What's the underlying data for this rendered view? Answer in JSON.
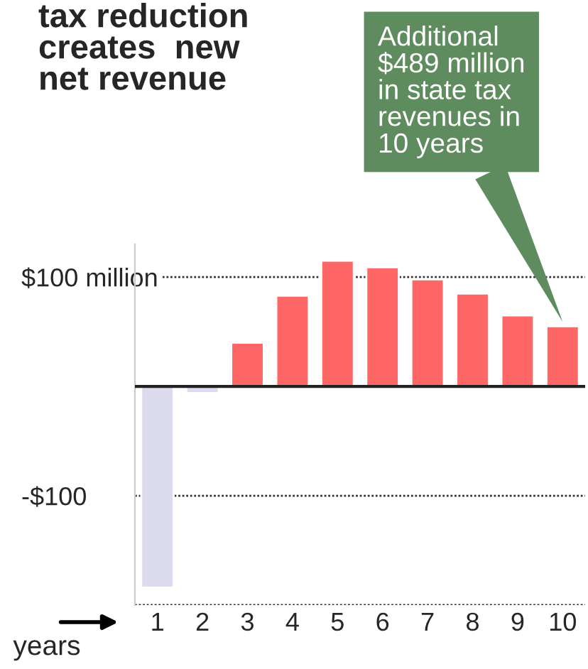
{
  "chart_data": {
    "type": "bar",
    "title": "tax reduction\ncreates  new\nnet revenue",
    "xlabel": "years",
    "categories": [
      "1",
      "2",
      "3",
      "4",
      "5",
      "6",
      "7",
      "8",
      "9",
      "10"
    ],
    "values": [
      -184,
      -6,
      40,
      83,
      115,
      109,
      98,
      85,
      65,
      55
    ],
    "colors": [
      "#dcdaee",
      "#dcdaee",
      "#ff6666",
      "#ff6666",
      "#ff6666",
      "#ff6666",
      "#ff6666",
      "#ff6666",
      "#ff6666",
      "#ff6666"
    ],
    "ylim": [
      -200,
      130
    ],
    "yticks": [
      {
        "value": 100,
        "label": "$100 million"
      },
      {
        "value": -100,
        "label": "-$100"
      },
      {
        "value": -200,
        "label": null
      }
    ],
    "grid": "y",
    "annotations": [
      "Additional\n$489 million\nin state tax\nrevenues in\n10 years"
    ]
  }
}
